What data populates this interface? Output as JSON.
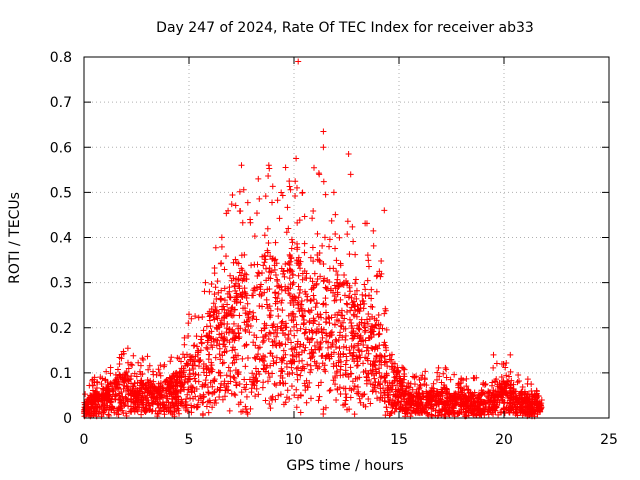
{
  "chart_data": {
    "type": "scatter",
    "title": "Day 247 of 2024, Rate Of TEC Index for receiver ab33",
    "xlabel": "GPS time / hours",
    "ylabel": "ROTI / TECUs",
    "xlim": [
      0,
      25
    ],
    "ylim": [
      0,
      0.8
    ],
    "xticks": [
      0,
      5,
      10,
      15,
      20,
      25
    ],
    "yticks": [
      0,
      0.1,
      0.2,
      0.3,
      0.4,
      0.5,
      0.6,
      0.7,
      0.8
    ],
    "xtick_labels": [
      "0",
      "5",
      "10",
      "15",
      "20",
      "25"
    ],
    "ytick_labels": [
      "0",
      "0.1",
      "0.2",
      "0.3",
      "0.4",
      "0.5",
      "0.6",
      "0.7",
      "0.8"
    ],
    "grid": true,
    "marker": "+",
    "series_color": "#ff0000",
    "x_extent": [
      0,
      21.8
    ],
    "envelope": {
      "hours": [
        0,
        0.5,
        1,
        1.5,
        2,
        2.5,
        3,
        3.5,
        4,
        4.5,
        5,
        5.5,
        6,
        6.5,
        7,
        7.5,
        8,
        8.5,
        9,
        9.5,
        10,
        10.5,
        11,
        11.5,
        12,
        12.5,
        13,
        13.5,
        14,
        14.5,
        15,
        15.5,
        16,
        16.5,
        17,
        17.5,
        18,
        18.5,
        19,
        19.5,
        20,
        20.5,
        21,
        21.5,
        21.8
      ],
      "upper_roti": [
        0.08,
        0.09,
        0.1,
        0.13,
        0.16,
        0.13,
        0.14,
        0.12,
        0.13,
        0.16,
        0.22,
        0.24,
        0.36,
        0.4,
        0.5,
        0.52,
        0.46,
        0.56,
        0.55,
        0.52,
        0.58,
        0.52,
        0.6,
        0.55,
        0.5,
        0.5,
        0.45,
        0.44,
        0.42,
        0.22,
        0.13,
        0.1,
        0.1,
        0.11,
        0.12,
        0.1,
        0.09,
        0.09,
        0.09,
        0.12,
        0.13,
        0.11,
        0.09,
        0.08,
        0.06
      ],
      "typical_roti": [
        0.02,
        0.03,
        0.035,
        0.05,
        0.06,
        0.04,
        0.05,
        0.04,
        0.045,
        0.06,
        0.08,
        0.09,
        0.13,
        0.15,
        0.18,
        0.19,
        0.18,
        0.2,
        0.2,
        0.19,
        0.21,
        0.19,
        0.21,
        0.19,
        0.18,
        0.18,
        0.16,
        0.15,
        0.14,
        0.08,
        0.05,
        0.035,
        0.03,
        0.035,
        0.04,
        0.03,
        0.03,
        0.03,
        0.03,
        0.04,
        0.045,
        0.035,
        0.03,
        0.03,
        0.02
      ]
    },
    "notable_points": [
      {
        "x": 10.2,
        "y": 0.79
      },
      {
        "x": 11.4,
        "y": 0.635
      },
      {
        "x": 11.4,
        "y": 0.6
      },
      {
        "x": 12.6,
        "y": 0.585
      },
      {
        "x": 10.1,
        "y": 0.575
      },
      {
        "x": 7.5,
        "y": 0.56
      },
      {
        "x": 8.8,
        "y": 0.56
      },
      {
        "x": 9.6,
        "y": 0.555
      },
      {
        "x": 11.2,
        "y": 0.54
      },
      {
        "x": 12.7,
        "y": 0.54
      },
      {
        "x": 8.3,
        "y": 0.53
      },
      {
        "x": 11.9,
        "y": 0.5
      },
      {
        "x": 14.3,
        "y": 0.46
      },
      {
        "x": 5.0,
        "y": 0.23
      },
      {
        "x": 19.5,
        "y": 0.14
      },
      {
        "x": 20.3,
        "y": 0.14
      }
    ]
  }
}
